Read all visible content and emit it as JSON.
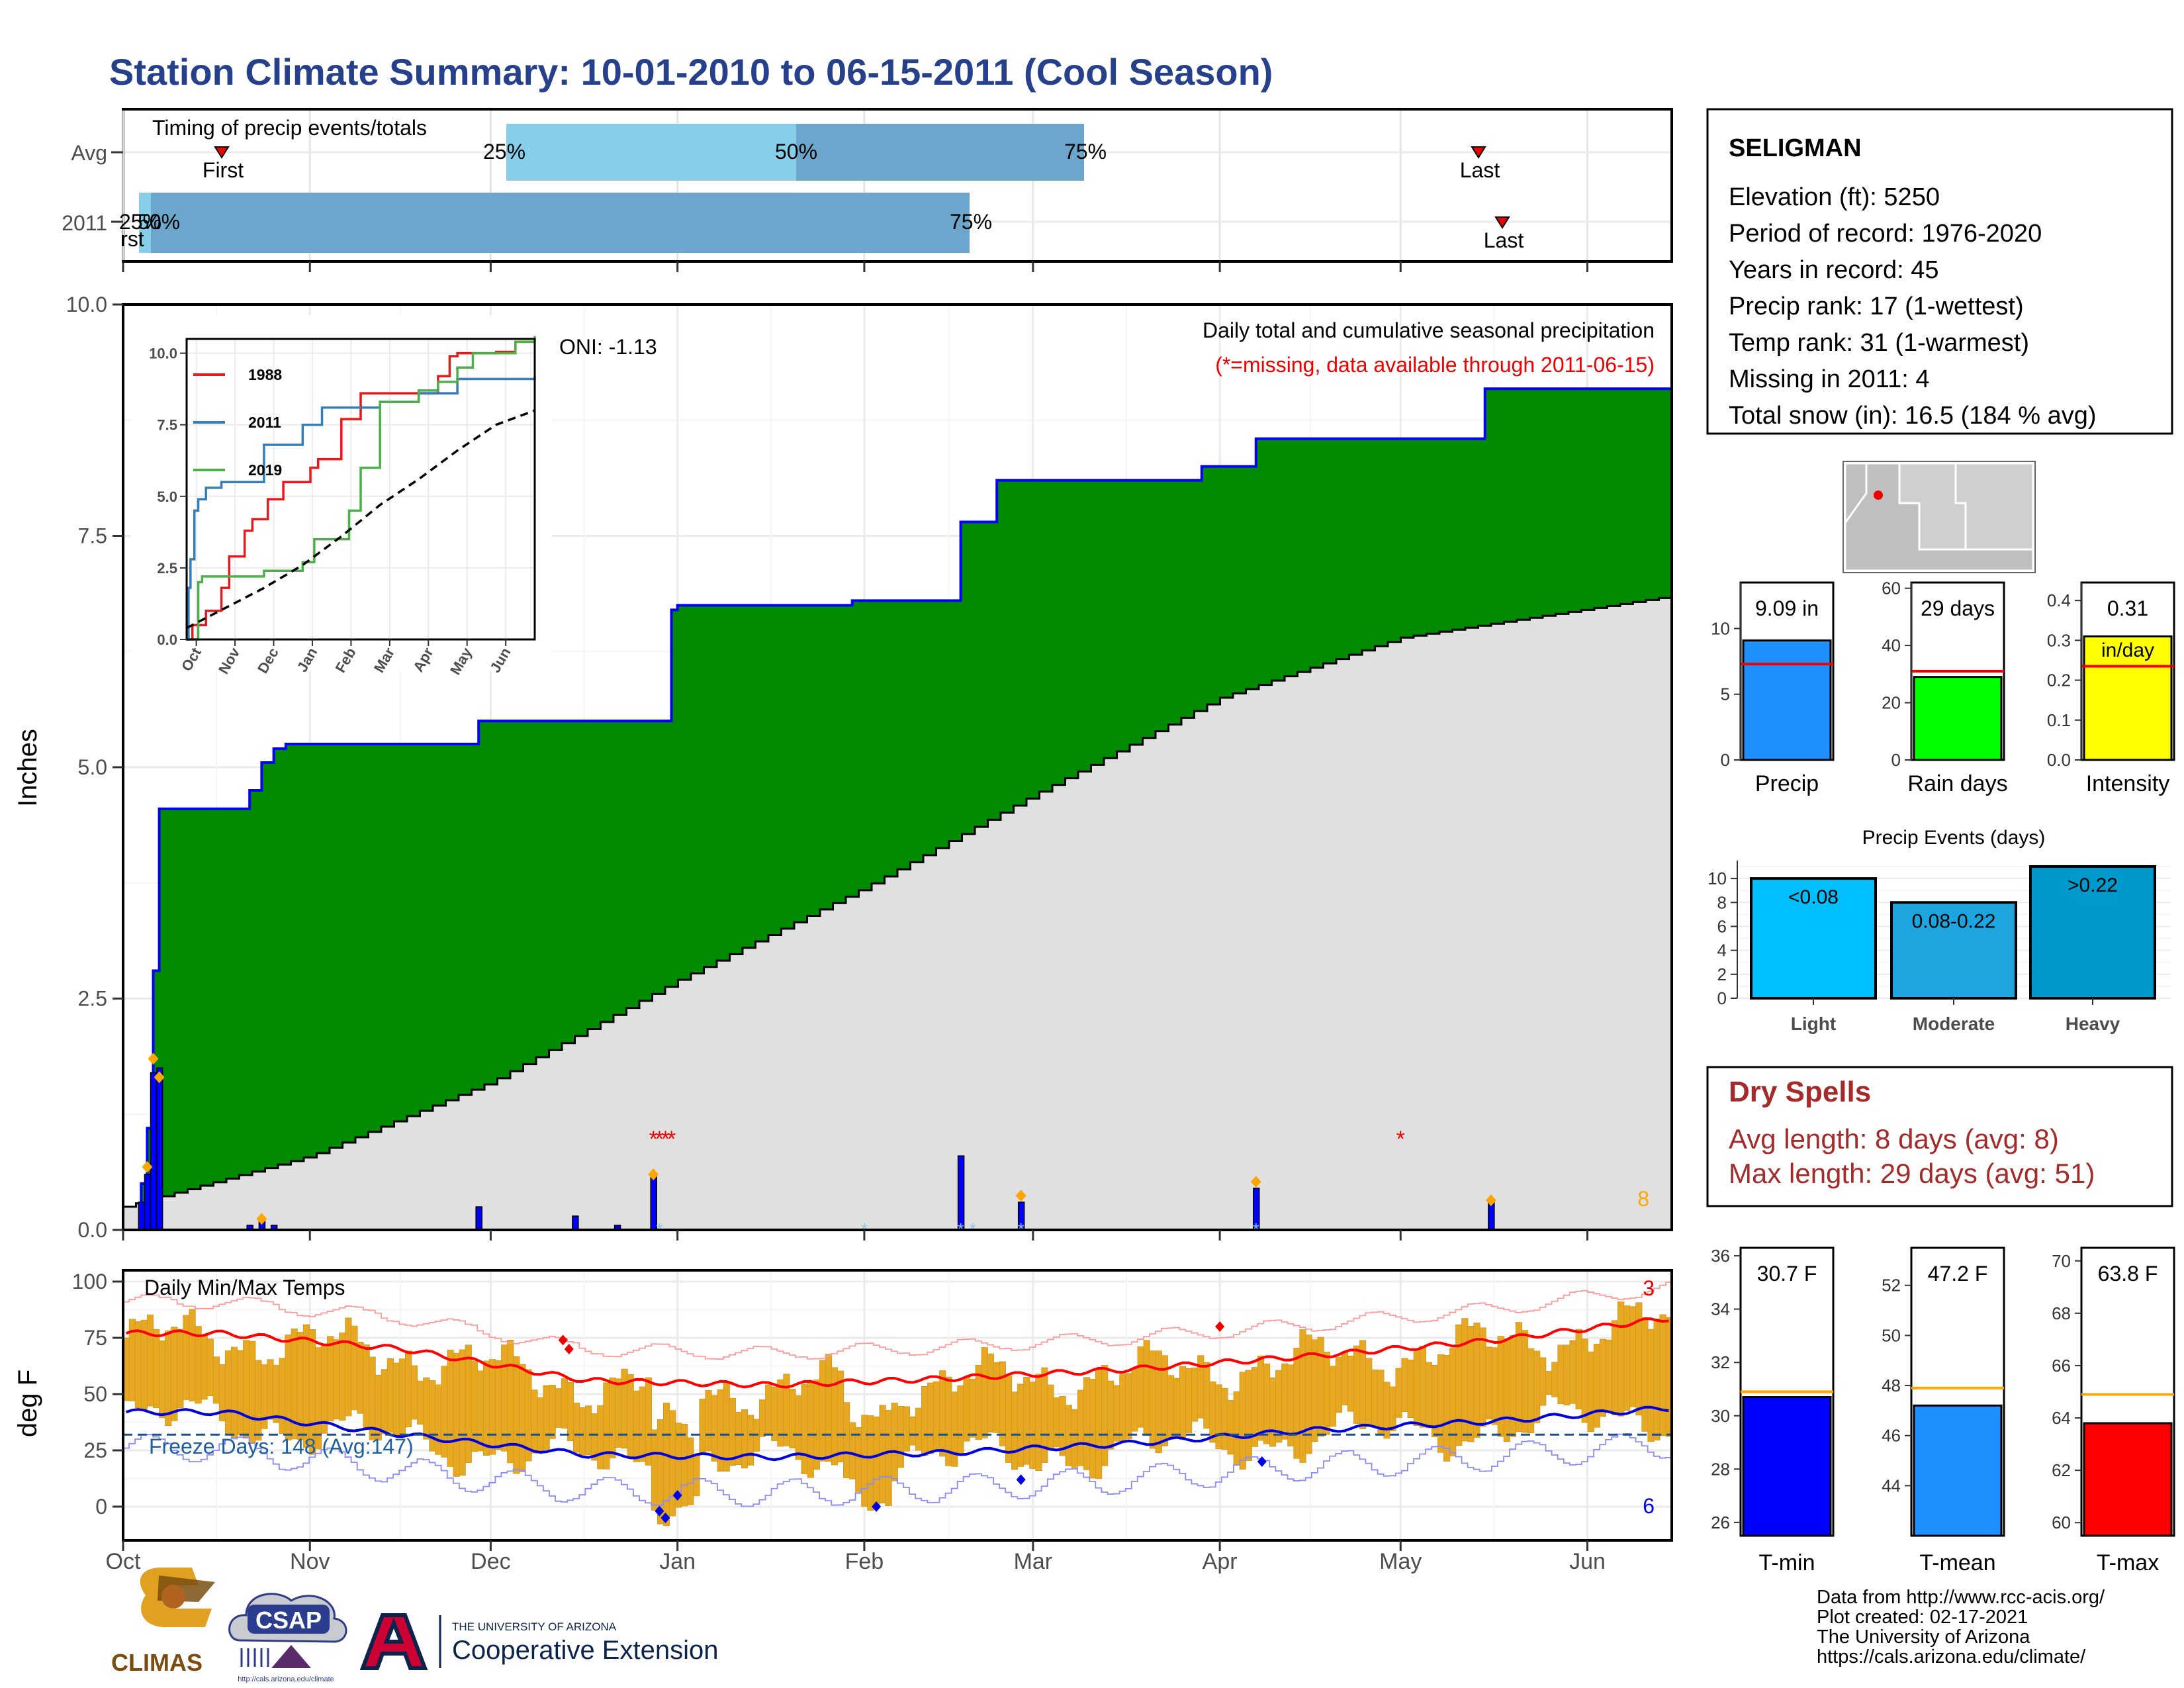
{
  "title": "Station Climate Summary: 10-01-2010 to 06-15-2011 (Cool Season)",
  "timing": {
    "title": "Timing of precip events/totals",
    "avg_label": "Avg",
    "year_label": "2011",
    "first_label": "First",
    "last_label": "Last",
    "pct25": "25%",
    "pct50": "50%",
    "pct75": "75%"
  },
  "months": [
    "Oct",
    "Nov",
    "Dec",
    "Jan",
    "Feb",
    "Mar",
    "Apr",
    "May",
    "Jun"
  ],
  "precip_panel": {
    "ylabel": "Inches",
    "yticks": [
      "0.0",
      "2.5",
      "5.0",
      "7.5",
      "10.0"
    ],
    "legend_title": "Daily total and cumulative seasonal precipitation",
    "legend_note": "(*=missing, data available through 2011-06-15)",
    "oni": "ONI: -1.13",
    "count": "8"
  },
  "inset": {
    "years": [
      "1988",
      "2011",
      "2019"
    ],
    "yticks": [
      "0.0",
      "2.5",
      "5.0",
      "7.5",
      "10.0"
    ],
    "months": [
      "Oct",
      "Nov",
      "Dec",
      "Jan",
      "Feb",
      "Mar",
      "Apr",
      "May",
      "Jun"
    ]
  },
  "temp_panel": {
    "ylabel": "deg F",
    "title": "Daily Min/Max Temps",
    "freeze": "Freeze Days: 148 (Avg:147)",
    "yticks": [
      "0",
      "25",
      "50",
      "75",
      "100"
    ],
    "hi_count": "3",
    "lo_count": "6"
  },
  "station": {
    "name": "SELIGMAN",
    "lines": [
      "Elevation (ft): 5250",
      "Period of record: 1976-2020",
      "Years in record: 45",
      "Precip rank: 17 (1-wettest)",
      "Temp rank: 31 (1-warmest)",
      "Missing in 2011: 4",
      "Total snow (in): 16.5 (184 % avg)"
    ]
  },
  "mini_bars": [
    {
      "label": "Precip",
      "value_text": "9.09 in",
      "value": 9.09,
      "avg": 7.3,
      "ymax": 13.5,
      "yticks": [
        "0",
        "5",
        "10"
      ],
      "tickvals": [
        0,
        5,
        10
      ],
      "color": "#1e90ff"
    },
    {
      "label": "Rain days",
      "value_text": "29 days",
      "value": 29,
      "avg": 31,
      "ymax": 62,
      "yticks": [
        "0",
        "20",
        "40",
        "60"
      ],
      "tickvals": [
        0,
        20,
        40,
        60
      ],
      "color": "#00ff00"
    },
    {
      "label": "Intensity",
      "value_text": "0.31",
      "value_text2": "in/day",
      "value": 0.31,
      "avg": 0.235,
      "ymax": 0.445,
      "yticks": [
        "0.0",
        "0.1",
        "0.2",
        "0.3",
        "0.4"
      ],
      "tickvals": [
        0,
        0.1,
        0.2,
        0.3,
        0.4
      ],
      "color": "#ffff00"
    }
  ],
  "events": {
    "title": "Precip Events (days)",
    "yticks": [
      "0",
      "2",
      "4",
      "6",
      "8",
      "10"
    ],
    "bars": [
      {
        "label": "Light",
        "range": "<0.08",
        "value": 10,
        "color": "#00bfff"
      },
      {
        "label": "Moderate",
        "range": "0.08-0.22",
        "value": 8,
        "color": "#1ca5df"
      },
      {
        "label": "Heavy",
        "range": ">0.22",
        "value": 11,
        "color": "#0099cc"
      }
    ]
  },
  "dry": {
    "title": "Dry Spells",
    "avg": "Avg length: 8 days (avg: 8)",
    "max": "Max length: 29 days (avg: 51)"
  },
  "temp_bars": [
    {
      "label": "T-min",
      "value_text": "30.7 F",
      "value": 30.7,
      "avg": 30.9,
      "ymin": 25.5,
      "ymax": 36.3,
      "yticks": [
        "26",
        "28",
        "30",
        "32",
        "34",
        "36"
      ],
      "tickvals": [
        26,
        28,
        30,
        32,
        34,
        36
      ],
      "color": "#0000ff"
    },
    {
      "label": "T-mean",
      "value_text": "47.2 F",
      "value": 47.2,
      "avg": 47.9,
      "ymin": 42.0,
      "ymax": 53.5,
      "yticks": [
        "44",
        "46",
        "48",
        "50",
        "52"
      ],
      "tickvals": [
        44,
        46,
        48,
        50,
        52
      ],
      "color": "#1e90ff"
    },
    {
      "label": "T-max",
      "value_text": "63.8 F",
      "value": 63.8,
      "avg": 64.9,
      "ymin": 59.5,
      "ymax": 70.5,
      "yticks": [
        "60",
        "62",
        "64",
        "66",
        "68",
        "70"
      ],
      "tickvals": [
        60,
        62,
        64,
        66,
        68,
        70
      ],
      "color": "#ff0000"
    }
  ],
  "footer": [
    "Data from http://www.rcc-acis.org/",
    "Plot created: 02-17-2021",
    "The University of Arizona",
    "https://cals.arizona.edu/climate/"
  ],
  "logos": {
    "climas": "CLIMAS",
    "csap": "CSAP",
    "csap_url": "http://cals.arizona.edu/climate",
    "ua_small": "THE UNIVERSITY OF ARIZONA",
    "ua_big": "Cooperative Extension"
  },
  "chart_data": [
    {
      "type": "area",
      "title": "Daily total and cumulative seasonal precipitation",
      "ylabel": "Inches",
      "ylim": [
        0,
        10
      ],
      "x_range": [
        "2010-10-01",
        "2011-06-15"
      ],
      "cumulative_2011": {
        "x": [
          "2010-10-01",
          "2010-10-04",
          "2010-10-05",
          "2010-10-06",
          "2010-10-07",
          "2010-10-22",
          "2010-10-24",
          "2010-10-26",
          "2010-10-28",
          "2010-11-29",
          "2010-12-31",
          "2011-01-01",
          "2011-01-30",
          "2011-02-17",
          "2011-02-23",
          "2011-03-29",
          "2011-04-07",
          "2011-05-15",
          "2011-06-15"
        ],
        "y": [
          0.2,
          0.5,
          1.1,
          2.8,
          4.55,
          4.75,
          5.05,
          5.2,
          5.25,
          5.5,
          6.7,
          6.75,
          6.8,
          7.65,
          8.1,
          8.25,
          8.55,
          9.09,
          9.09
        ]
      },
      "average_cumulative": {
        "x": [
          "2010-10-01",
          "2010-11-01",
          "2010-12-01",
          "2011-01-01",
          "2011-02-01",
          "2011-03-01",
          "2011-04-01",
          "2011-05-01",
          "2011-06-15"
        ],
        "y": [
          0.25,
          0.8,
          1.6,
          2.7,
          3.7,
          4.7,
          5.75,
          6.4,
          6.85
        ]
      },
      "daily_total": {
        "x": [
          "2010-10-04",
          "2010-10-05",
          "2010-10-06",
          "2010-10-07",
          "2010-10-22",
          "2010-10-24",
          "2010-10-26",
          "2010-11-29",
          "2010-12-15",
          "2010-12-22",
          "2010-12-28",
          "2011-02-17",
          "2011-02-27",
          "2011-04-07",
          "2011-05-16"
        ],
        "y": [
          0.3,
          0.6,
          1.7,
          1.75,
          0.05,
          0.1,
          0.05,
          0.25,
          0.15,
          0.05,
          0.6,
          0.8,
          0.3,
          0.45,
          0.3
        ]
      }
    },
    {
      "type": "line",
      "title": "",
      "ylim": [
        0,
        10.5
      ],
      "x_range": [
        "Oct",
        "Jun"
      ],
      "series": [
        {
          "name": "1988",
          "x": [
            0,
            0.15,
            0.5,
            0.9,
            1.1,
            1.5,
            1.7,
            2.1,
            2.5,
            3.2,
            3.4,
            4,
            4.5,
            6.5,
            6.8,
            7,
            8,
            8.5,
            8.9,
            9.0
          ],
          "y": [
            0,
            0.5,
            1.0,
            1.8,
            2.9,
            3.8,
            4.2,
            4.9,
            5.5,
            6.0,
            6.3,
            7.7,
            8.6,
            9.2,
            9.9,
            10.0,
            10.05,
            10.4,
            10.4,
            10.4
          ]
        },
        {
          "name": "2011",
          "x": [
            0,
            0.05,
            0.1,
            0.2,
            0.3,
            0.5,
            0.9,
            1.1,
            2.0,
            3.0,
            3.5,
            5.0,
            5.5,
            6.0,
            7.0,
            8.0,
            9.0
          ],
          "y": [
            0,
            1.8,
            2.8,
            4.5,
            4.9,
            5.3,
            5.5,
            5.5,
            6.8,
            7.5,
            8.1,
            8.3,
            8.3,
            8.6,
            9.1,
            9.1,
            9.2
          ]
        },
        {
          "name": "2019",
          "x": [
            0,
            0.3,
            0.4,
            1.0,
            2.0,
            3.0,
            3.3,
            4.2,
            4.5,
            5.0,
            6.0,
            6.5,
            7.0,
            7.4,
            8.0,
            8.5,
            9.0
          ],
          "y": [
            0,
            2.0,
            2.2,
            2.2,
            2.4,
            2.7,
            3.5,
            4.5,
            6.0,
            8.3,
            8.7,
            9.0,
            9.5,
            10.0,
            10.0,
            10.4,
            10.6
          ]
        },
        {
          "name": "Average",
          "x": [
            0,
            1,
            2,
            3,
            4,
            5,
            6,
            7,
            8,
            9
          ],
          "y": [
            0.4,
            1.1,
            1.8,
            2.6,
            3.6,
            4.7,
            5.6,
            6.6,
            7.5,
            8.0
          ]
        }
      ]
    },
    {
      "type": "bar",
      "title": "Daily Min/Max Temps",
      "ylabel": "deg F",
      "ylim": [
        -15,
        105
      ],
      "x_range": [
        "2010-10-01",
        "2011-06-15"
      ],
      "avg_max": {
        "x": [
          "Oct",
          "Nov",
          "Dec",
          "Jan",
          "Feb",
          "Mar",
          "Apr",
          "May",
          "Jun"
        ],
        "y": [
          77,
          70,
          56,
          54,
          57,
          61,
          67,
          74,
          84
        ]
      },
      "avg_min": {
        "x": [
          "Oct",
          "Nov",
          "Dec",
          "Jan",
          "Feb",
          "Mar",
          "Apr",
          "May",
          "Jun"
        ],
        "y": [
          42,
          32,
          23,
          22,
          24,
          28,
          34,
          38,
          44
        ]
      },
      "freeze_line": 32
    },
    {
      "type": "bar",
      "categories": [
        "Precip"
      ],
      "values": [
        9.09
      ],
      "ylim": [
        0,
        13.5
      ]
    },
    {
      "type": "bar",
      "categories": [
        "Rain days"
      ],
      "values": [
        29
      ],
      "ylim": [
        0,
        62
      ]
    },
    {
      "type": "bar",
      "categories": [
        "Intensity"
      ],
      "values": [
        0.31
      ],
      "ylim": [
        0,
        0.445
      ]
    },
    {
      "type": "bar",
      "title": "Precip Events (days)",
      "categories": [
        "Light",
        "Moderate",
        "Heavy"
      ],
      "values": [
        10,
        8,
        11
      ],
      "ylim": [
        0,
        11.5
      ]
    },
    {
      "type": "bar",
      "categories": [
        "T-min"
      ],
      "values": [
        30.7
      ],
      "ylim": [
        25.5,
        36.3
      ]
    },
    {
      "type": "bar",
      "categories": [
        "T-mean"
      ],
      "values": [
        47.2
      ],
      "ylim": [
        42.0,
        53.5
      ]
    },
    {
      "type": "bar",
      "categories": [
        "T-max"
      ],
      "values": [
        63.8
      ],
      "ylim": [
        59.5,
        70.5
      ]
    }
  ]
}
